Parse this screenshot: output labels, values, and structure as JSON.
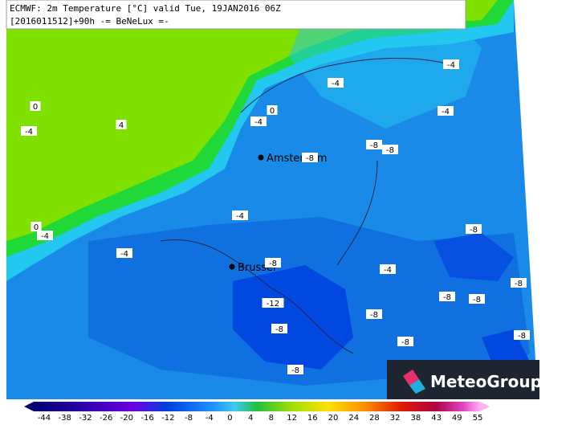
{
  "header": {
    "line1": "ECMWF: 2m Temperature [°C] valid Tue, 19JAN2016 06Z",
    "line2": "[2016011512]+90h  -= BeNeLux =-"
  },
  "cities": [
    "Amsterdam",
    "Brussel"
  ],
  "contour_labels": [
    "0",
    "-4",
    "4",
    "0",
    "-4",
    "-4",
    "-4",
    "-4",
    "-8",
    "-8",
    "-8",
    "-4",
    "0",
    "-4",
    "-4",
    "-8",
    "-4",
    "-8",
    "-8",
    "-12",
    "-8",
    "-8",
    "-8",
    "-8",
    "-8",
    "-8",
    "-8"
  ],
  "legend": {
    "ticks": [
      "-44",
      "-38",
      "-32",
      "-26",
      "-20",
      "-16",
      "-12",
      "-8",
      "-4",
      "0",
      "4",
      "8",
      "12",
      "16",
      "20",
      "24",
      "28",
      "32",
      "38",
      "43",
      "49",
      "55"
    ]
  },
  "logo": "MeteoGroup"
}
